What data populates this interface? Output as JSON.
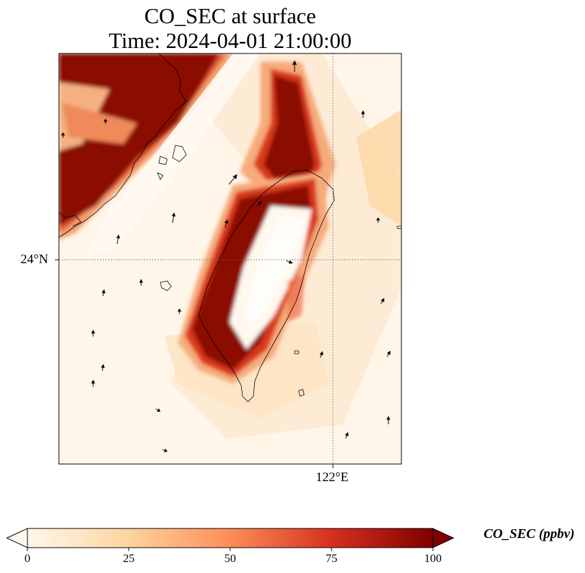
{
  "title": {
    "line1": "CO_SEC at surface",
    "line2": "Time: 2024-04-01 21:00:00"
  },
  "map": {
    "lat_label": "24°N",
    "lon_label": "122°E",
    "gridline_style": "dotted",
    "colormap": "OrRd"
  },
  "colorbar": {
    "label": "CO_SEC (ppbv)",
    "ticks": [
      "0",
      "25",
      "50",
      "75",
      "100"
    ],
    "range": [
      0,
      100
    ],
    "extend": "both",
    "colors": [
      "#fff7ec",
      "#fdd49e",
      "#fc8d59",
      "#d7301f",
      "#7f0000"
    ]
  }
}
